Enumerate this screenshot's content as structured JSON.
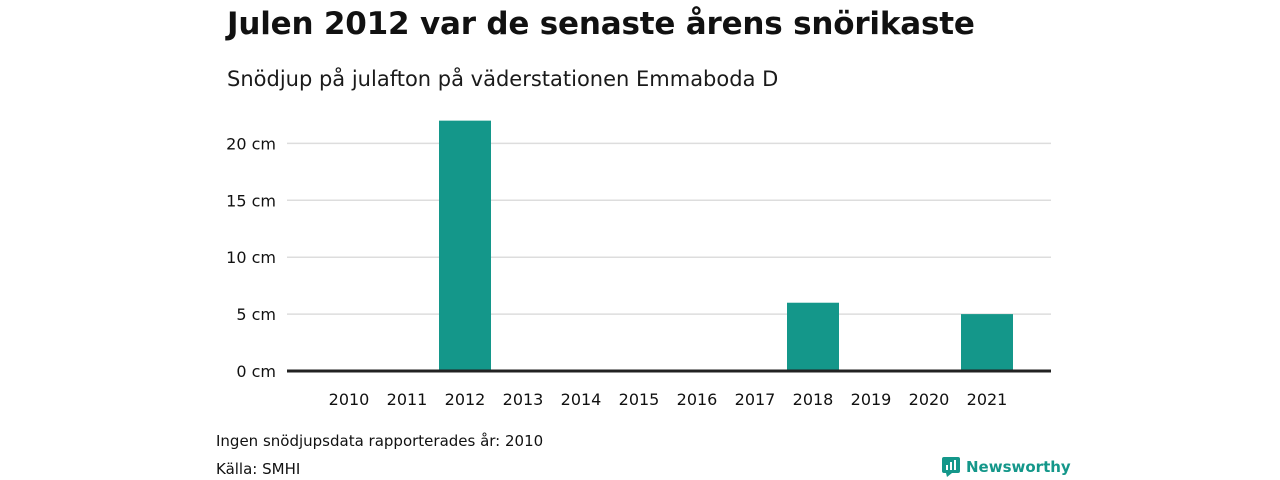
{
  "header": {
    "title": "Julen 2012 var de senaste årens snörikaste",
    "subtitle": "Snödjup på julafton på väderstationen Emmaboda D"
  },
  "footer": {
    "note": "Ingen snödjupsdata rapporterades år: 2010",
    "source": "Källa: SMHI",
    "brand": "Newsworthy",
    "brand_icon": "newsworthy-logo-icon"
  },
  "colors": {
    "bar": "#14978a",
    "grid": "#dddddd",
    "baseline": "#222222",
    "brand": "#14978a"
  },
  "chart_data": {
    "type": "bar",
    "title": "Julen 2012 var de senaste årens snörikaste",
    "subtitle": "Snödjup på julafton på väderstationen Emmaboda D",
    "categories": [
      "2010",
      "2011",
      "2012",
      "2013",
      "2014",
      "2015",
      "2016",
      "2017",
      "2018",
      "2019",
      "2020",
      "2021"
    ],
    "values": [
      null,
      0,
      22,
      0,
      0,
      0,
      0,
      0,
      6,
      0,
      0,
      5
    ],
    "unit": "cm",
    "yticks": [
      0,
      5,
      10,
      15,
      20
    ],
    "ytick_labels": [
      "0 cm",
      "5 cm",
      "10 cm",
      "15 cm",
      "20 cm"
    ],
    "ylim": [
      0,
      22
    ],
    "xlabel": "",
    "ylabel": "",
    "grid": true,
    "legend": "none"
  }
}
